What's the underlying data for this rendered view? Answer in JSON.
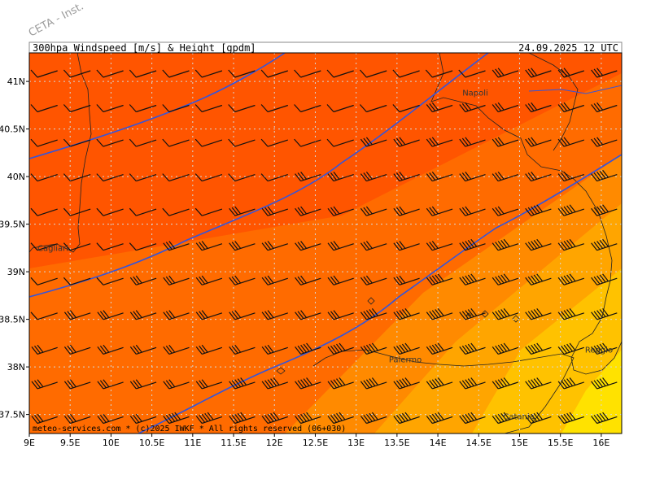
{
  "header": {
    "title": "300hpa Windspeed [m/s] & Height [gpdm]",
    "datetime": "24.09.2025 12 UTC"
  },
  "watermark": "CETA - Inst.",
  "footer": "meteo-services.com * (c)2025 IWKF * All rights reserved (06+030)",
  "cities": [
    {
      "name": "Napoli",
      "lon": 14.3,
      "lat": 40.85
    },
    {
      "name": "Cagliari",
      "lon": 9.1,
      "lat": 39.22
    },
    {
      "name": "Palermo",
      "lon": 13.4,
      "lat": 38.05
    },
    {
      "name": "Reggio",
      "lon": 15.8,
      "lat": 38.15
    },
    {
      "name": "Catania",
      "lon": 14.8,
      "lat": 37.45
    }
  ],
  "x_ticks": [
    "9E",
    "9.5E",
    "10E",
    "10.5E",
    "11E",
    "11.5E",
    "12E",
    "12.5E",
    "13E",
    "13.5E",
    "14E",
    "14.5E",
    "15E",
    "15.5E",
    "16E"
  ],
  "y_ticks": [
    "41N",
    "40.5N",
    "40N",
    "39.5N",
    "39N",
    "38.5N",
    "38N",
    "37.5N"
  ],
  "map": {
    "lon_range": [
      9,
      16.25
    ],
    "lat_range": [
      37.3,
      41.3
    ],
    "grid": true,
    "field_colors": [
      "#ee1111",
      "#ff3a00",
      "#ff5500",
      "#ff6b00",
      "#ff8a00",
      "#ffa500",
      "#ffc200",
      "#ffe200"
    ],
    "contour_color": "#3355dd"
  }
}
